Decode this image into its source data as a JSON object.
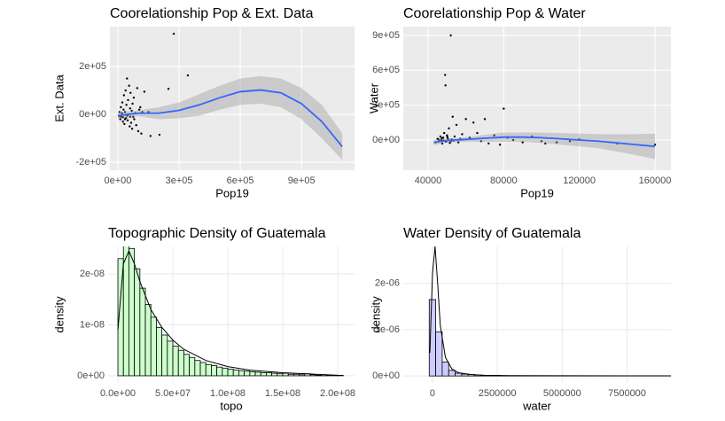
{
  "chart_data": [
    {
      "type": "scatter",
      "theme": "gray",
      "title": "Coorelationship Pop & Ext. Data",
      "x_label": "Pop19",
      "y_label": "Ext. Data",
      "xlim": [
        -39000,
        1160000
      ],
      "ylim": [
        -233000,
        367000
      ],
      "xticks": [
        {
          "value": 0,
          "label": "0e+00"
        },
        {
          "value": 300000,
          "label": "3e+05"
        },
        {
          "value": 600000,
          "label": "6e+05"
        },
        {
          "value": 900000,
          "label": "9e+05"
        }
      ],
      "yticks": [
        {
          "value": -200000,
          "label": "-2e+05"
        },
        {
          "value": 0,
          "label": "0e+00"
        },
        {
          "value": 200000,
          "label": "2e+05"
        }
      ],
      "x": [
        5000,
        8000,
        12000,
        15000,
        18000,
        20000,
        22000,
        25000,
        28000,
        30000,
        32000,
        35000,
        38000,
        40000,
        42000,
        45000,
        48000,
        50000,
        52000,
        55000,
        58000,
        60000,
        62000,
        65000,
        68000,
        70000,
        72000,
        75000,
        78000,
        80000,
        85000,
        90000,
        95000,
        100000,
        105000,
        110000,
        115000,
        120000,
        130000,
        150000,
        160000,
        204000,
        248000,
        274000,
        343000,
        10000,
        25000,
        35000,
        45000,
        60000
      ],
      "y": [
        -5000,
        10000,
        -20000,
        30000,
        -10000,
        5000,
        50000,
        -30000,
        20000,
        80000,
        -40000,
        10000,
        100000,
        -15000,
        40000,
        150000,
        -25000,
        60000,
        0,
        120000,
        -50000,
        25000,
        90000,
        -35000,
        15000,
        -60000,
        45000,
        -10000,
        70000,
        -20000,
        5000,
        -45000,
        110000,
        -70000,
        20000,
        30000,
        -80000,
        10000,
        95000,
        10000,
        -90000,
        -85000,
        107000,
        337000,
        163000,
        -8000,
        -12000,
        -20000,
        -5000,
        -10000
      ],
      "point_color": "#000000",
      "smooth": {
        "color": "#3366ff",
        "x": [
          0,
          100000,
          200000,
          300000,
          400000,
          500000,
          600000,
          700000,
          800000,
          900000,
          1000000,
          1100000
        ],
        "y": [
          -5000,
          5000,
          5000,
          17000,
          40000,
          70000,
          95000,
          102000,
          90000,
          45000,
          -30000,
          -135000
        ],
        "lower": [
          -20000,
          -7000,
          -20000,
          -16000,
          -5000,
          20000,
          40000,
          45000,
          30000,
          -20000,
          -100000,
          -190000
        ],
        "upper": [
          10000,
          17000,
          30000,
          50000,
          85000,
          120000,
          150000,
          160000,
          150000,
          110000,
          40000,
          -80000
        ]
      }
    },
    {
      "type": "scatter",
      "theme": "gray",
      "title": "Coorelationship Pop & Water",
      "x_label": "Pop19",
      "y_label": "Water",
      "xlim": [
        26870,
        168440
      ],
      "ylim": [
        -259500,
        976000
      ],
      "xticks": [
        40000,
        80000,
        120000,
        160000
      ],
      "yticks": [
        {
          "value": 0,
          "label": "0e+00"
        },
        {
          "value": 300000,
          "label": "3e+05"
        },
        {
          "value": 600000,
          "label": "6e+05"
        },
        {
          "value": 900000,
          "label": "9e+05"
        }
      ],
      "x": [
        44000,
        45000,
        46000,
        46500,
        47000,
        47500,
        48000,
        48500,
        49000,
        49200,
        49500,
        50000,
        50500,
        51000,
        51500,
        52000,
        52500,
        53000,
        53500,
        54000,
        55000,
        56000,
        57000,
        58000,
        60000,
        62000,
        64000,
        66000,
        68000,
        70000,
        72000,
        75000,
        78000,
        80000,
        82000,
        85000,
        90000,
        95000,
        100000,
        102000,
        108000,
        115000,
        120000,
        140000,
        160000,
        45500,
        47200,
        48200,
        50200,
        52200
      ],
      "y": [
        -20000,
        10000,
        -10000,
        30000,
        0,
        -30000,
        20000,
        60000,
        560000,
        470000,
        -15000,
        40000,
        10000,
        100000,
        -25000,
        900000,
        5000,
        200000,
        -5000,
        30000,
        130000,
        -20000,
        10000,
        50000,
        180000,
        20000,
        150000,
        60000,
        -10000,
        180000,
        -30000,
        40000,
        -40000,
        270000,
        20000,
        0,
        -20000,
        30000,
        -10000,
        -30000,
        -20000,
        -10000,
        5000,
        -30000,
        -40000,
        5000,
        15000,
        -5000,
        25000,
        -10000
      ],
      "point_color": "#000000",
      "smooth": {
        "color": "#3366ff",
        "x": [
          43000,
          50000,
          60000,
          70000,
          80000,
          90000,
          100000,
          110000,
          120000,
          130000,
          140000,
          150000,
          160000
        ],
        "y": [
          -20000,
          -5000,
          5000,
          15000,
          25000,
          25000,
          20000,
          10000,
          0,
          -10000,
          -25000,
          -40000,
          -55000
        ],
        "lower": [
          -45000,
          -20000,
          -15000,
          -15000,
          -15000,
          -15000,
          -25000,
          -40000,
          -55000,
          -70000,
          -100000,
          -130000,
          -165000
        ],
        "upper": [
          5000,
          10000,
          25000,
          45000,
          65000,
          65000,
          65000,
          60000,
          55000,
          50000,
          50000,
          50000,
          55000
        ]
      }
    },
    {
      "type": "histogram",
      "theme": "minimal",
      "title": "Topographic Density of Guatemala",
      "x_label": "topo",
      "y_label": "density",
      "xlim": [
        -8900000,
        215300000
      ],
      "ylim": [
        -1.4e-09,
        2.54e-08
      ],
      "xticks": [
        {
          "value": 0,
          "label": "0.0e+00"
        },
        {
          "value": 50000000,
          "label": "5.0e+07"
        },
        {
          "value": 100000000,
          "label": "1.0e+08"
        },
        {
          "value": 150000000,
          "label": "1.5e+08"
        },
        {
          "value": 200000000,
          "label": "2.0e+08"
        }
      ],
      "yticks": [
        {
          "value": 0,
          "label": "0e+00"
        },
        {
          "value": 1e-08,
          "label": "1e-08"
        },
        {
          "value": 2e-08,
          "label": "2e-08"
        }
      ],
      "bins": [
        0,
        5000000,
        10000000,
        15000000,
        20000000,
        25000000,
        30000000,
        35000000,
        40000000,
        45000000,
        50000000,
        55000000,
        60000000,
        65000000,
        70000000,
        75000000,
        80000000,
        85000000,
        90000000,
        95000000,
        100000000,
        105000000,
        110000000,
        115000000,
        120000000,
        125000000,
        130000000,
        135000000,
        140000000,
        145000000,
        150000000,
        155000000,
        160000000,
        165000000,
        170000000,
        175000000,
        180000000,
        185000000,
        190000000,
        195000000,
        200000000,
        205000000
      ],
      "values": [
        2.3e-08,
        2.55e-08,
        2.5e-08,
        2.1e-08,
        1.72e-08,
        1.4e-08,
        1.15e-08,
        9.5e-09,
        8e-09,
        6.8e-09,
        5.8e-09,
        5e-09,
        4.2e-09,
        3.6e-09,
        3e-09,
        2.6e-09,
        2.2e-09,
        2e-09,
        1.7e-09,
        1.5e-09,
        1.3e-09,
        1.1e-09,
        1e-09,
        9e-10,
        8e-10,
        7e-10,
        6e-10,
        6e-10,
        5e-10,
        4e-10,
        5e-10,
        3e-10,
        3e-10,
        2e-10,
        4e-10,
        2e-10,
        1e-10,
        2e-10,
        1e-10,
        1e-10,
        1e-10
      ],
      "color": "#ccffcc",
      "edge_color": "#000000",
      "density": {
        "color": "#000000",
        "x": [
          0,
          5000000,
          10000000,
          15000000,
          20000000,
          30000000,
          40000000,
          50000000,
          60000000,
          80000000,
          100000000,
          120000000,
          150000000,
          180000000,
          200000000
        ],
        "y": [
          9e-09,
          2.2e-08,
          2.45e-08,
          2.2e-08,
          1.85e-08,
          1.3e-08,
          9.5e-09,
          7e-09,
          5.2e-09,
          3e-09,
          1.8e-09,
          1.1e-09,
          6e-10,
          3e-10,
          1e-10
        ]
      }
    },
    {
      "type": "histogram",
      "theme": "minimal",
      "title": "Water Density of Guatemala",
      "x_label": "water",
      "y_label": "density",
      "xlim": [
        -1125000,
        9190000
      ],
      "ylim": [
        -1.5e-07,
        2.8e-06
      ],
      "xticks": [
        0,
        2500000,
        5000000,
        7500000
      ],
      "yticks": [
        {
          "value": 0,
          "label": "0e+00"
        },
        {
          "value": 1e-06,
          "label": "1e-06"
        },
        {
          "value": 2e-06,
          "label": "2e-06"
        }
      ],
      "bins": [
        -125000,
        125000,
        375000,
        625000,
        875000,
        1125000,
        1375000,
        1625000,
        1875000,
        2125000,
        2375000,
        2625000,
        2875000,
        3125000,
        3375000,
        3625000,
        3875000,
        4125000,
        4375000,
        4625000,
        4875000,
        5125000,
        5375000,
        5625000,
        5875000,
        6125000,
        6375000,
        6625000,
        6875000,
        7125000,
        7375000,
        7625000,
        7875000,
        8125000,
        8375000,
        8625000,
        8875000,
        9125000,
        9375000
      ],
      "values": [
        1.65e-06,
        9.5e-07,
        3e-07,
        1.2e-07,
        6e-08,
        4e-08,
        3e-08,
        2e-08,
        1e-08,
        1e-08,
        1e-08,
        5e-09,
        5e-09,
        5e-09,
        3e-09,
        3e-09,
        3e-09,
        3e-09,
        3e-09,
        3e-09,
        3e-09,
        3e-09,
        5e-09,
        3e-09,
        3e-09,
        3e-09,
        3e-09,
        3e-09,
        5e-09,
        3e-09,
        3e-09,
        3e-09,
        3e-09,
        3e-09,
        3e-09,
        3e-09,
        3e-09,
        5e-09
      ],
      "color": "#ccccff",
      "edge_color": "#000000",
      "density": {
        "color": "#000000",
        "x": [
          -100000,
          0,
          100000,
          200000,
          300000,
          500000,
          750000,
          1000000,
          1500000,
          2000000,
          3000000,
          5000000,
          7500000,
          9100000
        ],
        "y": [
          5e-07,
          2.2e-06,
          2.8e-06,
          2e-06,
          1.1e-06,
          4e-07,
          1.5e-07,
          7e-08,
          3e-08,
          1.5e-08,
          8e-09,
          5e-09,
          4e-09,
          3e-09
        ]
      }
    }
  ]
}
